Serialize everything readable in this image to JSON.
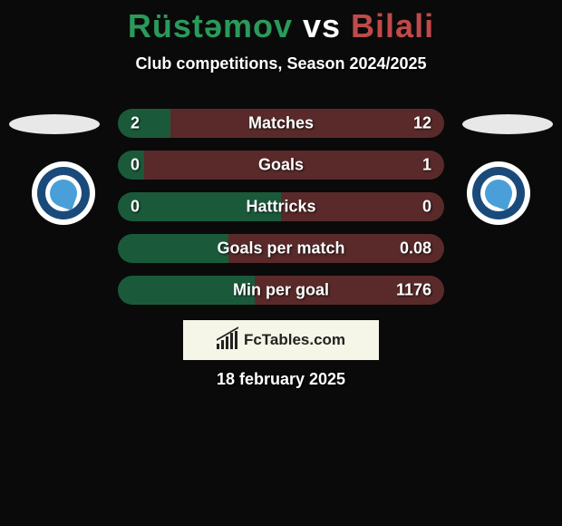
{
  "title": {
    "player1": "Rüstəmov",
    "vs": "vs",
    "player2": "Bilali",
    "player1_color": "#2a9a5a",
    "vs_color": "#ffffff",
    "player2_color": "#c04a4a"
  },
  "subtitle": "Club competitions, Season 2024/2025",
  "colors": {
    "left_fill": "#1a5a3a",
    "right_fill": "#5a2a2a",
    "background": "#0a0a0a",
    "logo_box": "#f5f5e8",
    "text": "#ffffff"
  },
  "bars": [
    {
      "label": "Matches",
      "left_val": "2",
      "right_val": "12",
      "left_pct": 16
    },
    {
      "label": "Goals",
      "left_val": "0",
      "right_val": "1",
      "left_pct": 8
    },
    {
      "label": "Hattricks",
      "left_val": "0",
      "right_val": "0",
      "left_pct": 50
    },
    {
      "label": "Goals per match",
      "left_val": "",
      "right_val": "0.08",
      "left_pct": 34
    },
    {
      "label": "Min per goal",
      "left_val": "",
      "right_val": "1176",
      "left_pct": 42
    }
  ],
  "logo_text": "FcTables.com",
  "date_text": "18 february 2025",
  "badges": {
    "outer_color": "#ffffff",
    "inner_color": "#1a4a7a",
    "swirl_color": "#4a9fd8"
  }
}
